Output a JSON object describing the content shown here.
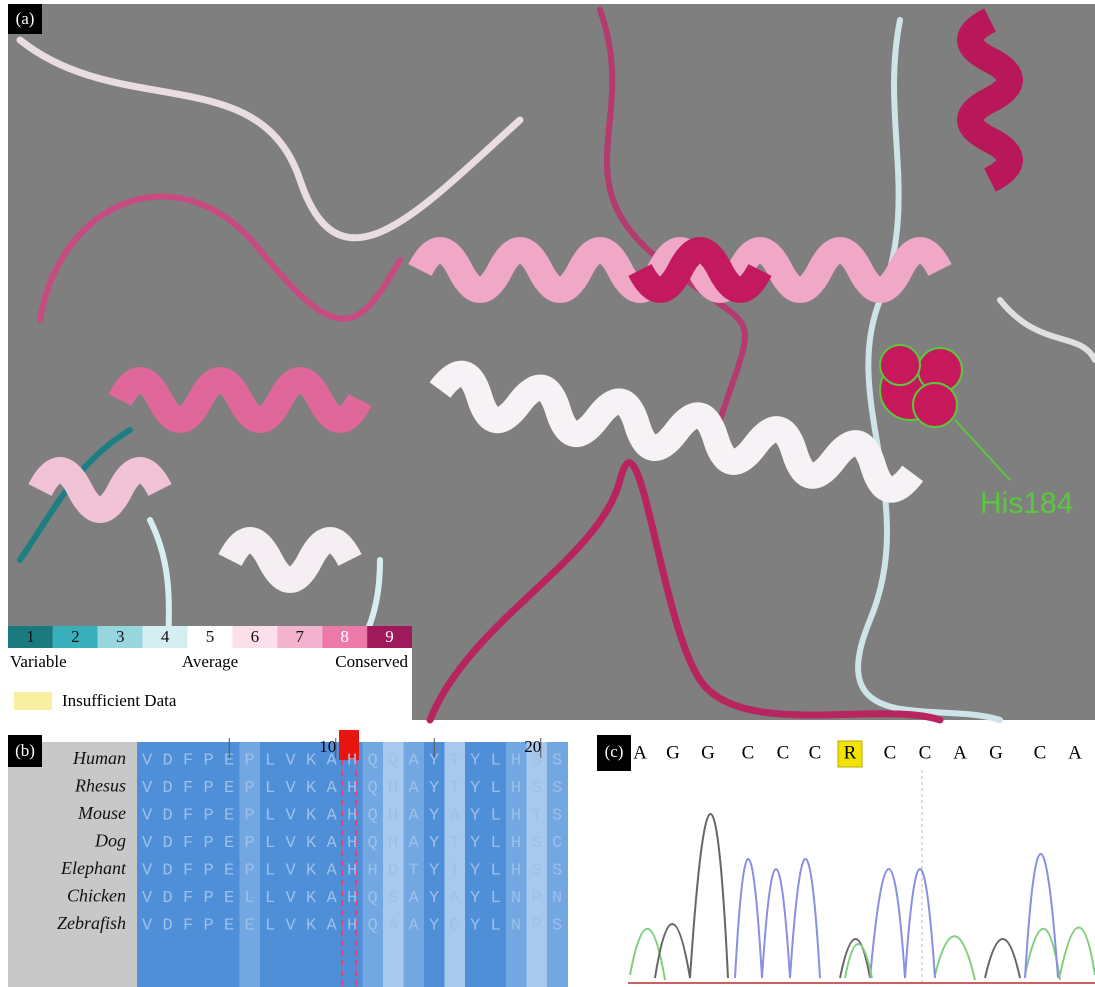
{
  "panel_a": {
    "label": "(a)",
    "annotation": "His184",
    "legend": {
      "scale": [
        "1",
        "2",
        "3",
        "4",
        "5",
        "6",
        "7",
        "8",
        "9"
      ],
      "low": "Variable",
      "mid": "Average",
      "high": "Conserved",
      "insufficient": "Insufficient Data"
    }
  },
  "panel_b": {
    "label": "(b)",
    "ruler": [
      "10",
      "20"
    ],
    "rows": [
      {
        "species": "Human",
        "sequence": "VDFPEPLVKAHQQAYTYLHSS"
      },
      {
        "species": "Rhesus",
        "sequence": "VDFPEPLVKAHQHAYTYLHSS"
      },
      {
        "species": "Mouse",
        "sequence": "VDFPEPLVKAHQHAYAYLHTS"
      },
      {
        "species": "Dog",
        "sequence": "VDFPEPLVKAHQHAYTYLHSC"
      },
      {
        "species": "Elephant",
        "sequence": "VDFPEPLVKAHHDTYTYLHSS"
      },
      {
        "species": "Chicken",
        "sequence": "VDFPELLVKAHQSAYAYLNPN"
      },
      {
        "species": "Zebrafish",
        "sequence": "VDFPEELVKAHQAAYGYLNPS"
      }
    ]
  },
  "panel_c": {
    "label": "(c)",
    "bases": [
      "A",
      "G",
      "G",
      "C",
      "C",
      "C",
      "R",
      "C",
      "C",
      "A",
      "G",
      "C",
      "A"
    ]
  }
}
